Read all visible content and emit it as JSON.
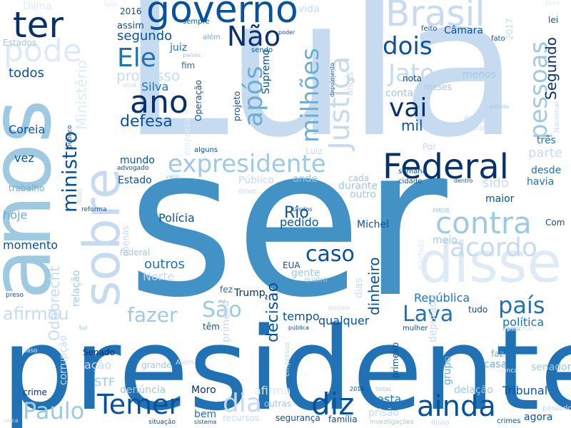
{
  "cloud": {
    "words": [
      "Lula",
      "ser",
      "presidente",
      "anos",
      "sobre",
      "disse",
      "governo",
      "Brasil",
      "pode",
      "ter",
      "Federal",
      "expresidente",
      "ano",
      "Ele",
      "Não",
      "após",
      "milhões",
      "Justiça",
      "Jato",
      "pessoas",
      "contra",
      "acordo",
      "ainda",
      "diz",
      "país",
      "Lava",
      "caso",
      "fazer",
      "São",
      "Temer",
      "Paulo",
      "dia",
      "ministro",
      "dois",
      "vai",
      "mil",
      "Dilma",
      "Isso",
      "2016",
      "assim",
      "segundo",
      "juiz",
      "fim",
      "Silva",
      "processo",
      "todos",
      "Coreia",
      "vez",
      "trabalho",
      "hoje",
      "momento",
      "afirmou",
      "defesa",
      "mundo",
      "Estado",
      "Polícia",
      "outros",
      "Norte",
      "relação",
      "Odebrecht",
      "corrupção",
      "ação",
      "STF",
      "denúncia",
      "Moro",
      "bem",
      "crime",
      "Senado",
      "grande",
      "Além",
      "primeira",
      "afirma",
      "nesta",
      "decisão",
      "tempo",
      "Trump",
      "fez",
      "EUA",
      "gente",
      "quatro",
      "Rio",
      "pedido",
      "Michel",
      "dinheiro",
      "outro",
      "durante",
      "dias",
      "República",
      "tudo",
      "política",
      "qualquer",
      "Tribunal",
      "delação",
      "grupo",
      "casa",
      "faz",
      "senador",
      "agora",
      "crimes",
      "passado",
      "Câmara",
      "fato",
      "feito",
      "nota",
      "meses",
      "menos",
      "então",
      "três",
      "parte",
      "desde",
      "havia",
      "maior",
      "Com",
      "meio",
      "sido",
      "deputado",
      "PMDB",
      "prisão",
      "família",
      "segurança",
      "outras",
      "recursos",
      "sistema",
      "situação",
      "investigações",
      "disso",
      "Segundo",
      "2017",
      "José",
      "lei",
      "Estados",
      "Ministério",
      "Supremo",
      "projeto",
      "Operação",
      "sempre",
      "além",
      "poder",
      "países",
      "sendo",
      "local",
      "empresa",
      "alguns",
      "Luiz",
      "semana",
      "cidade",
      "dentro",
      "onde",
      "cada",
      "deve",
      "Público",
      "valor",
      "advogado",
      "público",
      "apenas",
      "reforma",
      "duas",
      "preso",
      "federal",
      "Sul",
      "vida",
      "antes",
      "partido",
      "empresas",
      "política",
      "pública",
      "mulher",
      "desta",
      "primeiro",
      "nunca",
      "todas",
      "2014",
      "Unidos",
      "estado",
      "Sérgio",
      "Nacional",
      "depoimento",
      "propina",
      "cerca",
      "caso",
      "têm",
      "conta",
      "Por"
    ]
  }
}
